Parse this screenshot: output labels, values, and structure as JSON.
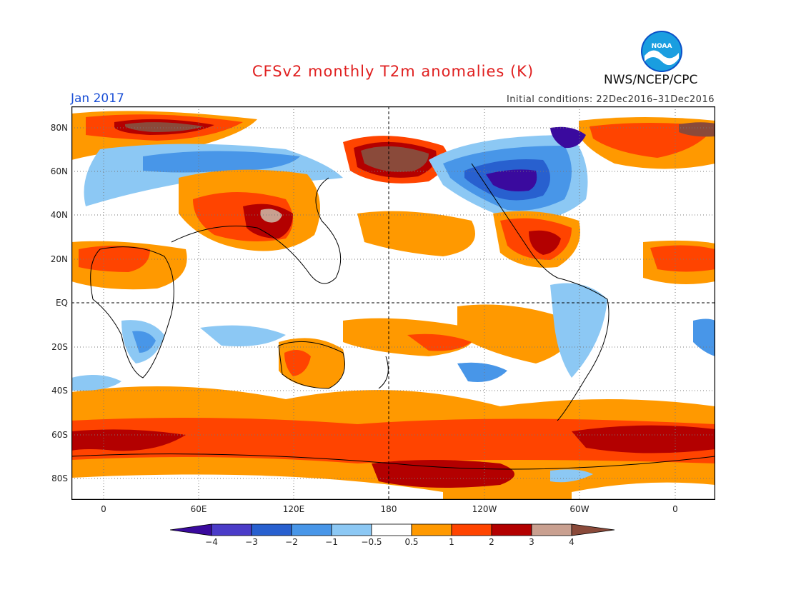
{
  "header": {
    "title": "CFSv2 monthly T2m anomalies (K)",
    "month": "Jan 2017",
    "initial_conditions": "Initial conditions: 22Dec2016–31Dec2016",
    "agency": "NWS/NCEP/CPC",
    "logo_text": "NOAA"
  },
  "map": {
    "lat_labels": [
      "80N",
      "60N",
      "40N",
      "20N",
      "EQ",
      "20S",
      "40S",
      "60S",
      "80S"
    ],
    "lon_labels": [
      "0",
      "60E",
      "120E",
      "180",
      "120W",
      "60W",
      "0"
    ]
  },
  "colorbar": {
    "labels": [
      "−4",
      "−3",
      "−2",
      "−1",
      "−0.5",
      "0.5",
      "1",
      "2",
      "3",
      "4"
    ],
    "colors": [
      "#3a0a9e",
      "#4b3cc8",
      "#2860cf",
      "#4896e8",
      "#8cc8f4",
      "#ffffff",
      "#ff9900",
      "#ff4400",
      "#b30000",
      "#c9a090",
      "#8a4a3a"
    ]
  }
}
